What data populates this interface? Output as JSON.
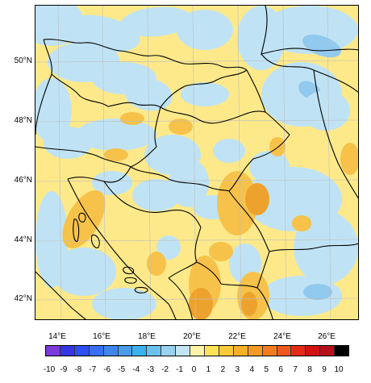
{
  "map": {
    "lat_labels": [
      "50°N",
      "48°N",
      "46°N",
      "44°N",
      "42°N"
    ],
    "lon_labels": [
      "14°E",
      "16°E",
      "18°E",
      "20°E",
      "22°E",
      "24°E",
      "26°E"
    ],
    "lat_range": [
      41.2,
      51.8
    ],
    "lon_range": [
      12.9,
      27.1
    ],
    "fill_colors": {
      "background": "#fde98a",
      "light_blue": "#bfe3f5",
      "mid_blue": "#92c9ee",
      "dark_blue": "#5aa8e8",
      "light_yellow": "#fde98a",
      "orange": "#f6c24a",
      "dark_orange": "#eea22e"
    },
    "border_color": "#000000",
    "graticule_color": "#bdbdbd"
  },
  "colorbar": {
    "labels": [
      "-10",
      "-9",
      "-8",
      "-7",
      "-6",
      "-5",
      "-4",
      "-3",
      "-2",
      "-1",
      "0",
      "1",
      "2",
      "3",
      "4",
      "5",
      "6",
      "7",
      "8",
      "9",
      "10"
    ],
    "colors": [
      "#7a3bd8",
      "#3535e6",
      "#2b4ff0",
      "#3a6ef0",
      "#3f86ea",
      "#4a9be8",
      "#3bb2ee",
      "#67c2f0",
      "#99d2ef",
      "#c3e4f4",
      "#fdf4a8",
      "#fde35a",
      "#fcc93a",
      "#f9b12a",
      "#f59a24",
      "#f27d1e",
      "#ef581c",
      "#e62a18",
      "#d21212",
      "#b8101a",
      "#000000"
    ]
  }
}
